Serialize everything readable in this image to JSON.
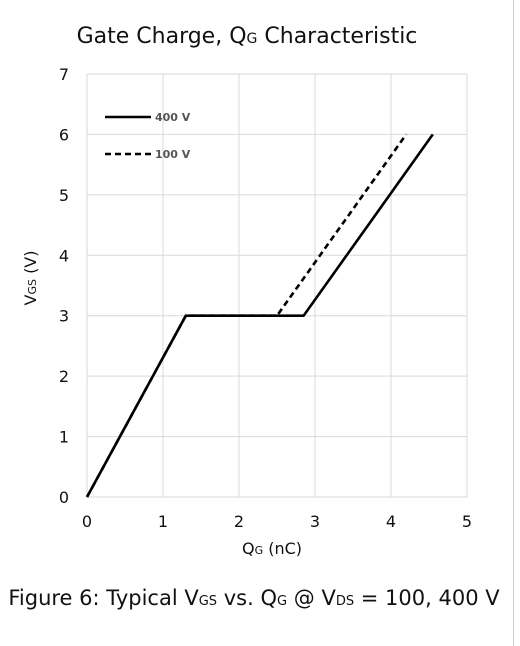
{
  "chart_data": {
    "type": "line",
    "title": {
      "main": "Gate Charge, Q",
      "sub": "G",
      "rest": " Characteristic"
    },
    "xlabel": {
      "main": "Q",
      "sub": "G",
      "rest": " (nC)"
    },
    "ylabel": {
      "main": "V",
      "sub": "GS",
      "rest": " (V)"
    },
    "xlim": [
      0,
      5
    ],
    "ylim": [
      0,
      7
    ],
    "xticks": [
      0,
      1,
      2,
      3,
      4,
      5
    ],
    "yticks": [
      0,
      1,
      2,
      3,
      4,
      5,
      6,
      7
    ],
    "grid": true,
    "legend_position": "top-left",
    "series": [
      {
        "name": "400 V",
        "dash": "solid",
        "color": "#000000",
        "x": [
          0,
          1.3,
          2.85,
          4.55
        ],
        "y": [
          0,
          3,
          3,
          6
        ]
      },
      {
        "name": "100 V",
        "dash": "dashed",
        "color": "#000000",
        "x": [
          0,
          1.3,
          2.5,
          4.2
        ],
        "y": [
          0,
          3,
          3,
          6
        ]
      }
    ]
  },
  "caption": {
    "p1": "Figure 6: Typical V",
    "s1": "GS",
    "p2": " vs. Q",
    "s2": "G",
    "p3": " @ V",
    "s3": "DS",
    "p4": " = 100, 400 V"
  }
}
